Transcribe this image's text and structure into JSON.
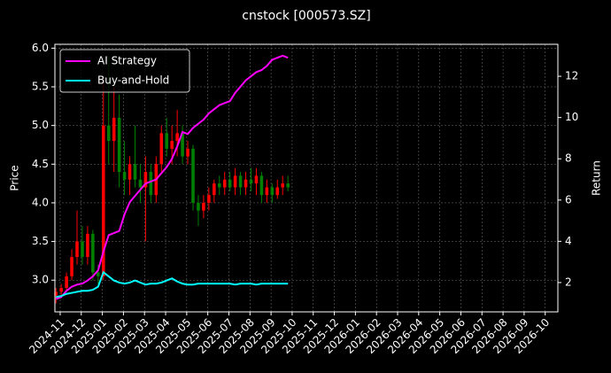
{
  "chart_data": {
    "type": "candlestick",
    "title": "cnstock [000573.SZ]",
    "ylabel": "Price",
    "y2label": "Return",
    "x": [
      -0.2,
      0.05,
      0.3,
      0.55,
      0.8,
      1.05,
      1.3,
      1.55,
      1.8,
      2.05,
      2.3,
      2.55,
      2.8,
      3.05,
      3.3,
      3.55,
      3.8,
      4.05,
      4.3,
      4.55,
      4.8,
      5.05,
      5.3,
      5.55,
      5.8,
      6.05,
      6.3,
      6.55,
      6.8,
      7.05,
      7.3,
      7.55,
      7.8,
      8.05,
      8.3,
      8.55,
      8.8,
      9.05,
      9.3,
      9.55,
      9.8,
      10.05,
      10.3,
      10.55,
      10.8
    ],
    "open": [
      2.8,
      2.85,
      2.9,
      3.05,
      3.3,
      3.5,
      3.3,
      3.6,
      3.1,
      3.05,
      5.0,
      4.8,
      5.1,
      4.4,
      4.3,
      4.5,
      4.3,
      4.2,
      4.4,
      4.1,
      4.5,
      4.9,
      4.7,
      4.8,
      4.9,
      4.6,
      4.7,
      4.0,
      3.9,
      4.0,
      4.1,
      4.25,
      4.2,
      4.3,
      4.2,
      4.35,
      4.2,
      4.3,
      4.25,
      4.35,
      4.1,
      4.2,
      4.1,
      4.2,
      4.25
    ],
    "high": [
      2.9,
      2.95,
      3.1,
      3.4,
      3.9,
      3.7,
      3.7,
      3.65,
      3.2,
      5.6,
      5.9,
      5.5,
      5.4,
      4.8,
      4.6,
      5.0,
      4.5,
      4.6,
      4.5,
      4.6,
      5.0,
      5.1,
      5.0,
      5.2,
      5.0,
      4.8,
      4.75,
      4.1,
      4.1,
      4.2,
      4.3,
      4.35,
      4.4,
      4.4,
      4.45,
      4.4,
      4.4,
      4.45,
      4.45,
      4.4,
      4.3,
      4.25,
      4.3,
      4.35,
      4.35
    ],
    "low": [
      2.7,
      2.78,
      2.85,
      3.0,
      3.2,
      3.2,
      3.2,
      3.0,
      2.95,
      3.0,
      4.5,
      4.4,
      4.2,
      4.1,
      4.1,
      4.2,
      4.0,
      3.5,
      4.0,
      4.0,
      4.4,
      4.6,
      4.5,
      4.6,
      4.5,
      4.5,
      3.9,
      3.7,
      3.8,
      3.9,
      4.0,
      4.1,
      4.1,
      4.15,
      4.1,
      4.1,
      4.1,
      4.15,
      4.1,
      4.0,
      4.0,
      4.0,
      4.05,
      4.1,
      4.15
    ],
    "close": [
      2.85,
      2.9,
      3.05,
      3.3,
      3.5,
      3.3,
      3.6,
      3.1,
      3.05,
      5.0,
      4.8,
      5.1,
      4.4,
      4.3,
      4.5,
      4.3,
      4.2,
      4.4,
      4.1,
      4.5,
      4.9,
      4.7,
      4.8,
      4.9,
      4.6,
      4.7,
      4.0,
      3.9,
      4.0,
      4.1,
      4.25,
      4.2,
      4.3,
      4.2,
      4.35,
      4.2,
      4.3,
      4.25,
      4.35,
      4.1,
      4.2,
      4.1,
      4.2,
      4.25,
      4.2
    ],
    "up_color": "#ff0000",
    "down_color": "#008000",
    "series": [
      {
        "name": "AI Strategy",
        "color": "#ff00ff",
        "axis": "y2",
        "values": [
          1.2,
          1.3,
          1.6,
          1.8,
          1.9,
          1.95,
          2.1,
          2.3,
          2.6,
          3.5,
          4.3,
          4.4,
          4.5,
          5.3,
          5.9,
          6.2,
          6.5,
          6.8,
          6.9,
          7.0,
          7.3,
          7.6,
          8.0,
          8.6,
          9.3,
          9.2,
          9.5,
          9.7,
          9.9,
          10.2,
          10.4,
          10.6,
          10.7,
          10.8,
          11.2,
          11.5,
          11.8,
          12.0,
          12.2,
          12.3,
          12.5,
          12.8,
          12.9,
          13.0,
          12.9
        ]
      },
      {
        "name": "Buy-and-Hold",
        "color": "#00ffff",
        "axis": "y2",
        "values": [
          1.3,
          1.35,
          1.45,
          1.5,
          1.55,
          1.6,
          1.6,
          1.65,
          1.8,
          2.5,
          2.3,
          2.1,
          2.0,
          1.95,
          2.0,
          2.1,
          2.0,
          1.9,
          1.95,
          1.95,
          2.0,
          2.1,
          2.2,
          2.05,
          1.95,
          1.9,
          1.9,
          1.95,
          1.95,
          1.95,
          1.95,
          1.95,
          1.95,
          1.95,
          1.9,
          1.95,
          1.95,
          1.95,
          1.9,
          1.95,
          1.95,
          1.95,
          1.95,
          1.95,
          1.95
        ]
      }
    ],
    "xlim": [
      -0.25,
      23.6
    ],
    "xticks": [
      {
        "value": 0,
        "label": "2024-11"
      },
      {
        "value": 1,
        "label": "2024-12"
      },
      {
        "value": 2,
        "label": "2025-01"
      },
      {
        "value": 3,
        "label": "2025-02"
      },
      {
        "value": 4,
        "label": "2025-03"
      },
      {
        "value": 5,
        "label": "2025-04"
      },
      {
        "value": 6,
        "label": "2025-05"
      },
      {
        "value": 7,
        "label": "2025-06"
      },
      {
        "value": 8,
        "label": "2025-07"
      },
      {
        "value": 9,
        "label": "2025-08"
      },
      {
        "value": 10,
        "label": "2025-09"
      },
      {
        "value": 11,
        "label": "2025-10"
      },
      {
        "value": 12,
        "label": "2025-11"
      },
      {
        "value": 13,
        "label": "2025-12"
      },
      {
        "value": 14,
        "label": "2026-01"
      },
      {
        "value": 15,
        "label": "2026-02"
      },
      {
        "value": 16,
        "label": "2026-03"
      },
      {
        "value": 17,
        "label": "2026-04"
      },
      {
        "value": 18,
        "label": "2026-05"
      },
      {
        "value": 19,
        "label": "2026-06"
      },
      {
        "value": 20,
        "label": "2026-07"
      },
      {
        "value": 21,
        "label": "2026-08"
      },
      {
        "value": 22,
        "label": "2026-09"
      },
      {
        "value": 23,
        "label": "2026-10"
      }
    ],
    "ylim": [
      2.59,
      6.05
    ],
    "yticks": [
      {
        "value": 3,
        "label": "3.0"
      },
      3.5,
      {
        "value": 4,
        "label": "4.0"
      },
      4.5,
      {
        "value": 5,
        "label": "5.0"
      },
      5.5,
      {
        "value": 6,
        "label": "6.0"
      }
    ],
    "y2lim": [
      0.58,
      13.55
    ],
    "y2ticks": [
      2,
      4,
      6,
      8,
      10,
      12
    ],
    "grid": true,
    "legend": "upper left"
  }
}
